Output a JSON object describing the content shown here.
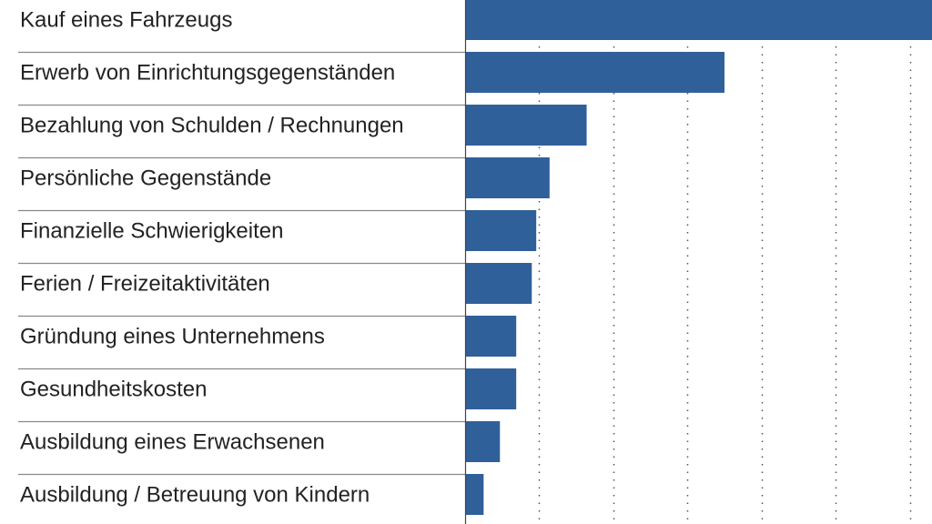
{
  "chart_data": {
    "type": "barh",
    "categories": [
      "Kauf eines Fahrzeugs",
      "Erwerb von Einrichtungsgegenständen",
      "Bezahlung von Schulden / Rechnungen",
      "Persönliche Gegenstände",
      "Finanzielle Schwierigkeiten",
      "Ferien / Freizeitaktivitäten",
      "Gründung eines Unternehmens",
      "Gesundheitskosten",
      "Ausbildung eines Erwachsenen",
      "Ausbildung / Betreuung von Kindern"
    ],
    "values": [
      63,
      35,
      16.4,
      11.4,
      9.6,
      9,
      6.9,
      6.9,
      4.7,
      2.5
    ],
    "color": "#30609a",
    "xlim": [
      0,
      63
    ],
    "xticks": [
      10,
      20,
      30,
      40,
      50,
      60
    ],
    "grid": true
  }
}
